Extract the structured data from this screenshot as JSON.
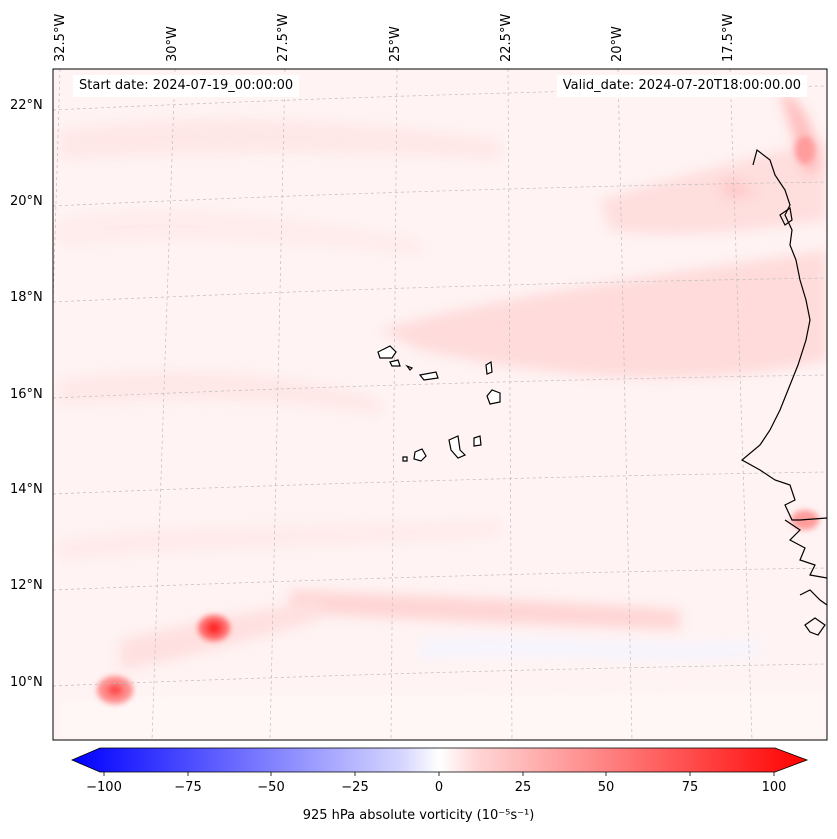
{
  "map": {
    "start_date": "Start date: 2024-07-19_00:00:00",
    "valid_date": "Valid_date: 2024-07-20T18:00:00.00",
    "lon_labels": [
      "32.5°W",
      "30°W",
      "27.5°W",
      "25°W",
      "22.5°W",
      "20°W",
      "17.5°W"
    ],
    "lat_labels": [
      "22°N",
      "20°N",
      "18°N",
      "16°N",
      "14°N",
      "12°N",
      "10°N"
    ],
    "features": [
      "Cape Verde islands",
      "West African coastline",
      "vorticity maxima near 11°N 30°W and 10°N 32°W",
      "positive vorticity streaks along 11.5°N"
    ]
  },
  "colorbar": {
    "label": "925 hPa absolute vorticity (10⁻⁵s⁻¹)",
    "ticks": [
      "−100",
      "−75",
      "−50",
      "−25",
      "0",
      "25",
      "50",
      "75",
      "100"
    ],
    "range": [
      -100,
      100
    ],
    "colors": {
      "neg": "#0000ff",
      "zero": "#ffffff",
      "pos": "#ff0000"
    }
  }
}
